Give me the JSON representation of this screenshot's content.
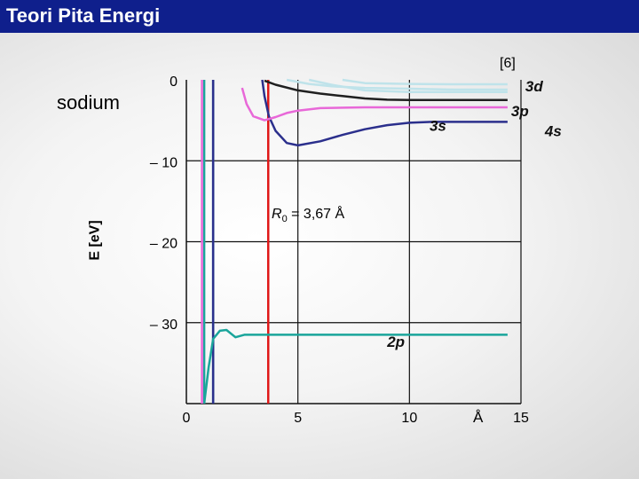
{
  "header": {
    "title": "Teori Pita Energi"
  },
  "labels": {
    "element": "sodium",
    "reference": "[6]",
    "r0_symbol": "R",
    "r0_sub": "0",
    "r0_value": " = 3,67 Å",
    "y_axis_label": "E [eV]",
    "x_unit": "Å"
  },
  "colors": {
    "title_bar": "#0f1f8c",
    "s2p": "#1aa59b",
    "s3s": "#2b2f8c",
    "s3p": "#e868d8",
    "s4s": "#1f1f1f",
    "s3d": "#bfe3ea",
    "r0_line": "#e01818",
    "grid": "#111111"
  },
  "chart_data": {
    "type": "line",
    "title": "",
    "xlabel": "",
    "ylabel": "E [eV]",
    "xlim": [
      0,
      15
    ],
    "ylim": [
      -40,
      0
    ],
    "x_ticks": [
      0,
      5,
      10,
      15
    ],
    "x_tick_labels": [
      "0",
      "5",
      "10",
      "15"
    ],
    "y_ticks": [
      0,
      -10,
      -20,
      -30
    ],
    "y_tick_labels": [
      "0",
      "– 10",
      "– 20",
      "– 30"
    ],
    "grid": true,
    "series": [
      {
        "name": "2p",
        "x": [
          0.8,
          1.0,
          1.2,
          1.5,
          1.8,
          2.2,
          2.6,
          3.0,
          5.0,
          10.0,
          14.4
        ],
        "y": [
          -40.0,
          -35.5,
          -32.0,
          -31.0,
          -30.9,
          -31.8,
          -31.5,
          -31.5,
          -31.5,
          -31.5,
          -31.5
        ]
      },
      {
        "name": "3s",
        "x": [
          3.4,
          3.5,
          3.7,
          4.0,
          4.5,
          5.0,
          6.0,
          7.0,
          8.0,
          9.0,
          10.0,
          11.0,
          12.0,
          13.0,
          14.4
        ],
        "y": [
          0.0,
          -2.0,
          -4.5,
          -6.3,
          -7.8,
          -8.1,
          -7.6,
          -6.8,
          -6.1,
          -5.6,
          -5.3,
          -5.2,
          -5.2,
          -5.2,
          -5.2
        ]
      },
      {
        "name": "3p",
        "x": [
          2.5,
          2.7,
          3.0,
          3.5,
          4.0,
          4.5,
          5.0,
          6.0,
          8.0,
          10.0,
          12.0,
          14.4
        ],
        "y": [
          -1.0,
          -3.0,
          -4.5,
          -5.0,
          -4.6,
          -4.1,
          -3.8,
          -3.5,
          -3.4,
          -3.4,
          -3.4,
          -3.4
        ]
      },
      {
        "name": "4s",
        "x": [
          3.5,
          4.0,
          5.0,
          6.0,
          7.0,
          8.0,
          9.0,
          10.0,
          12.0,
          14.4
        ],
        "y": [
          -0.1,
          -0.6,
          -1.3,
          -1.7,
          -2.0,
          -2.3,
          -2.45,
          -2.5,
          -2.5,
          -2.5
        ]
      },
      {
        "name": "3d",
        "x": [
          4.5,
          5.5,
          6.5,
          8.0,
          10.0,
          12.0,
          14.4
        ],
        "y": [
          0.0,
          -0.5,
          -0.8,
          -1.0,
          -1.1,
          -1.2,
          -1.2
        ]
      },
      {
        "name": "",
        "x": [
          5.5,
          6.5,
          8.0,
          10.0,
          12.0,
          14.4
        ],
        "y": [
          0.0,
          -0.6,
          -1.3,
          -1.5,
          -1.5,
          -1.5
        ]
      },
      {
        "name": "",
        "x": [
          7.0,
          8.0,
          10.0,
          12.0,
          14.4
        ],
        "y": [
          0.0,
          -0.4,
          -0.5,
          -0.55,
          -0.55
        ]
      }
    ],
    "vertical_lines": [
      {
        "name": "2p-core-left",
        "x": 0.8
      },
      {
        "name": "2p-core-right",
        "x": 1.2
      },
      {
        "name": "3p-left-edge",
        "x": 0.7
      },
      {
        "name": "3s-left-edge",
        "x": 1.2
      },
      {
        "name": "R0",
        "x": 3.67
      }
    ],
    "annotations": [
      {
        "text": "3d",
        "x": 14.4,
        "y": -1.0
      },
      {
        "text": "3p",
        "x": 14.4,
        "y": -3.4
      },
      {
        "text": "4s",
        "x": 14.4,
        "y": -5.0
      },
      {
        "text": "3s",
        "x": 10.9,
        "y": -5.2
      },
      {
        "text": "2p",
        "x": 9.0,
        "y": -33.0
      }
    ]
  }
}
